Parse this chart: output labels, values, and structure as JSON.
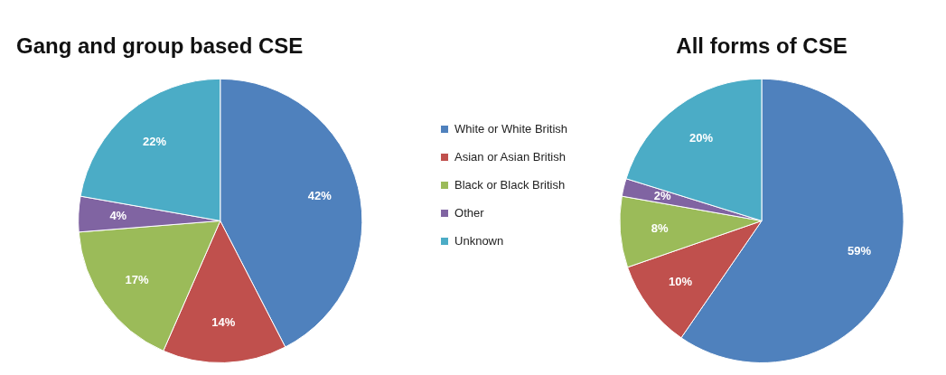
{
  "chart_data": [
    {
      "type": "pie",
      "title": "Gang and group based CSE",
      "categories": [
        "White or White British",
        "Asian or Asian British",
        "Black or Black British",
        "Other",
        "Unknown"
      ],
      "values": [
        42,
        14,
        17,
        4,
        22
      ],
      "value_labels": [
        "42%",
        "14%",
        "17%",
        "4%",
        "22%"
      ],
      "colors": [
        "#4f81bd",
        "#c0504d",
        "#9bbb59",
        "#8064a2",
        "#4bacc6"
      ],
      "legend": "right"
    },
    {
      "type": "pie",
      "title": "All forms of CSE",
      "categories": [
        null,
        null,
        null,
        null,
        null
      ],
      "values": [
        59,
        10,
        8,
        2,
        20
      ],
      "value_labels": [
        "59%",
        "10%",
        "8%",
        "2%",
        "20%"
      ],
      "colors": [
        "#4f81bd",
        "#c0504d",
        "#9bbb59",
        "#8064a2",
        "#4bacc6"
      ]
    }
  ]
}
